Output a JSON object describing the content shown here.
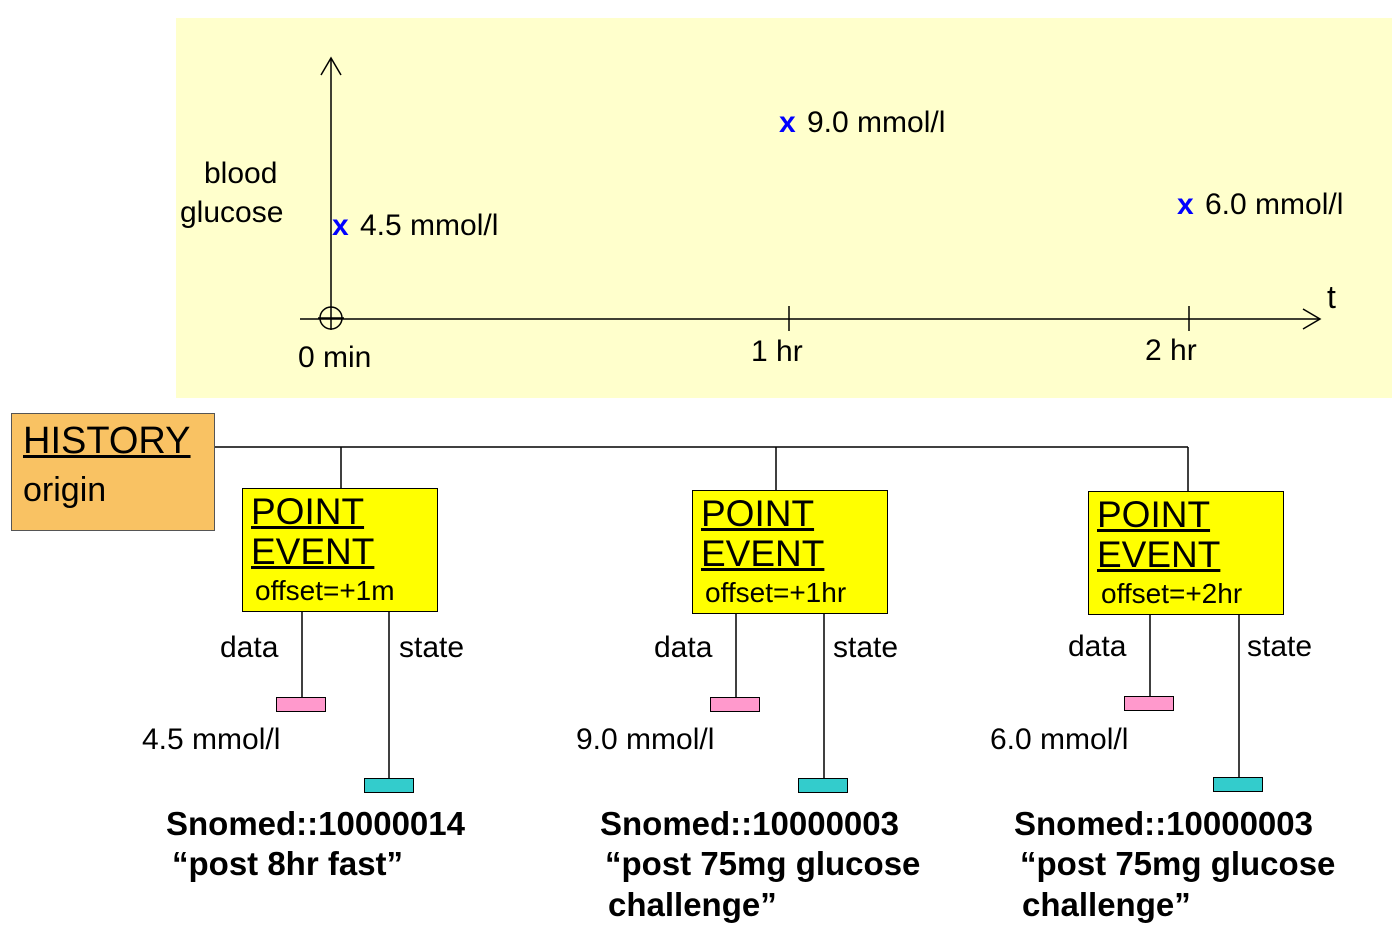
{
  "chart": {
    "y_label_line1": "blood",
    "y_label_line2": "glucose",
    "x_axis_label": "t",
    "ticks": [
      "0 min",
      "1 hr",
      "2 hr"
    ],
    "points": [
      {
        "marker": "x",
        "label": "4.5 mmol/l"
      },
      {
        "marker": "x",
        "label": "9.0 mmol/l"
      },
      {
        "marker": "x",
        "label": "6.0 mmol/l"
      }
    ]
  },
  "history": {
    "title": "HISTORY",
    "subtitle": "origin"
  },
  "events": [
    {
      "title1": "POINT",
      "title2": "EVENT",
      "offset": "offset=+1m",
      "data_label": "data",
      "state_label": "state",
      "value": "4.5 mmol/l",
      "snomed": "Snomed::10000014",
      "desc1": "“post 8hr fast”",
      "desc2": ""
    },
    {
      "title1": "POINT",
      "title2": "EVENT",
      "offset": "offset=+1hr",
      "data_label": "data",
      "state_label": "state",
      "value": "9.0 mmol/l",
      "snomed": "Snomed::10000003",
      "desc1": "“post 75mg glucose",
      "desc2": "challenge”"
    },
    {
      "title1": "POINT",
      "title2": "EVENT",
      "offset": "offset=+2hr",
      "data_label": "data",
      "state_label": "state",
      "value": "6.0 mmol/l",
      "snomed": "Snomed::10000003",
      "desc1": "“post 75mg glucose",
      "desc2": "challenge”"
    }
  ],
  "colors": {
    "panel": "#ffffcc",
    "history": "#f9c263",
    "event": "#ffff00",
    "data_leaf": "#ff99cc",
    "state_leaf": "#33cccc",
    "marker": "#0000ff"
  }
}
